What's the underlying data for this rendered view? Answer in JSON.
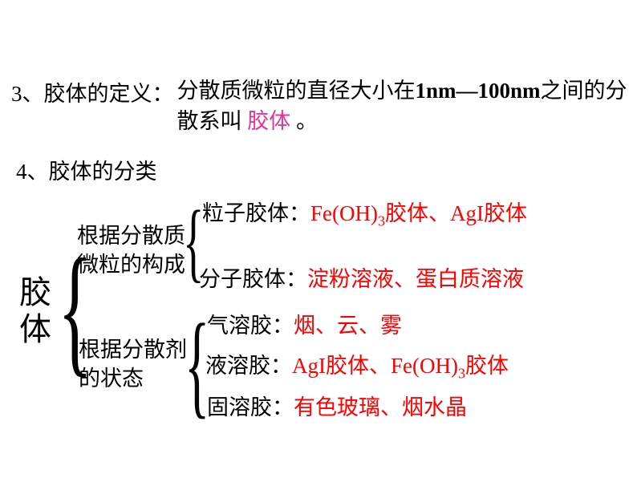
{
  "section3": {
    "label": "3、胶体的定义：",
    "text_part1": "分散质微粒的直径大小在",
    "text_bold": "1nm—100nm",
    "text_part2": "之间的分散系叫 ",
    "highlight": "胶体",
    "text_end": " 。"
  },
  "section4": {
    "label": "4、胶体的分类"
  },
  "main": {
    "label_line1": "胶",
    "label_line2": "体"
  },
  "classify1": {
    "label": "根据分散质微粒的构成"
  },
  "classify2": {
    "label": "根据分散剂的状态"
  },
  "items": {
    "particle": {
      "label": "粒子胶体：",
      "example_prefix": "Fe(OH)",
      "example_sub": "3",
      "example_suffix": "胶体、AgI胶体"
    },
    "molecule": {
      "label": "分子胶体：",
      "examples": "淀粉溶液、蛋白质溶液"
    },
    "gas": {
      "label": "气溶胶：",
      "examples": "烟、云、雾"
    },
    "liquid": {
      "label": "液溶胶：",
      "example_prefix": "AgI胶体、Fe(OH)",
      "example_sub": "3",
      "example_suffix": "胶体"
    },
    "solid": {
      "label": "固溶胶：",
      "examples": "有色玻璃、烟水晶"
    }
  },
  "colors": {
    "text": "#000000",
    "red": "#ff0000",
    "highlight": "#e63296",
    "background": "#ffffff"
  }
}
